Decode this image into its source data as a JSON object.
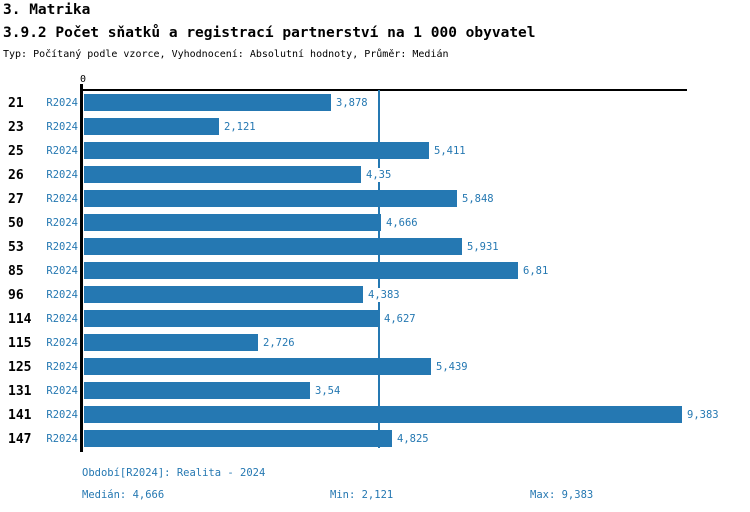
{
  "header": {
    "section": "3. Matrika",
    "title": "3.9.2 Počet sňatků a registrací partnerství na 1 000 obyvatel",
    "meta": "Typ: Počítaný podle vzorce, Vyhodnocení: Absolutní hodnoty, Průměr: Medián"
  },
  "chart_data": {
    "type": "bar",
    "orientation": "horizontal",
    "title": "3.9.2 Počet sňatků a registrací partnerství na 1 000 obyvatel",
    "categories": [
      "21",
      "23",
      "25",
      "26",
      "27",
      "50",
      "53",
      "85",
      "96",
      "114",
      "115",
      "125",
      "131",
      "141",
      "147"
    ],
    "series_label": "R2024",
    "values": [
      3.878,
      2.121,
      5.411,
      4.35,
      5.848,
      4.666,
      5.931,
      6.81,
      4.383,
      4.627,
      2.726,
      5.439,
      3.54,
      9.383,
      4.825
    ],
    "value_labels": [
      "3,878",
      "2,121",
      "5,411",
      "4,35",
      "5,848",
      "4,666",
      "5,931",
      "6,81",
      "4,383",
      "4,627",
      "2,726",
      "5,439",
      "3,54",
      "9,383",
      "4,825"
    ],
    "xlim": [
      0,
      9.49
    ],
    "x_zero_label": "0",
    "median": 4.666,
    "grid": "off",
    "legend": "none",
    "bar_color": "#2578b2",
    "axis_color": "#000000",
    "label_color": "#2578b2"
  },
  "footer": {
    "period": "Období[R2024]: Realita - 2024",
    "median": "Medián: 4,666",
    "min": "Min: 2,121",
    "max": "Max: 9,383"
  }
}
